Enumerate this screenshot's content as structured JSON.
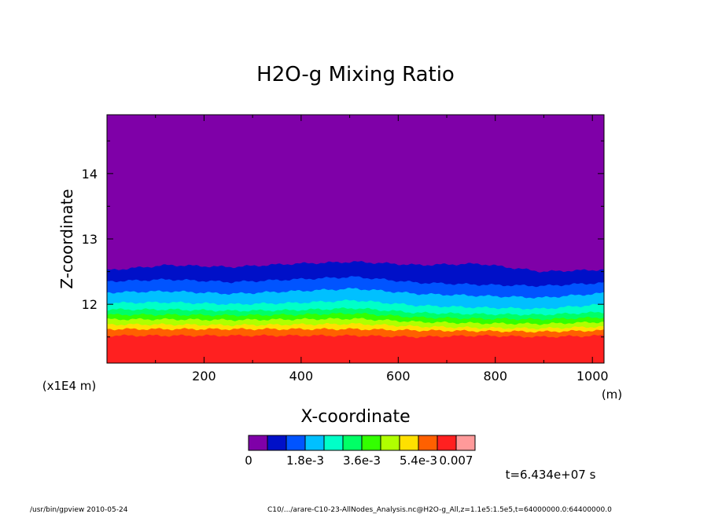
{
  "chart_data": {
    "type": "heatmap",
    "title": "H2O-g Mixing Ratio",
    "xlabel": "X-coordinate",
    "ylabel": "Z-coordinate",
    "x_unit": "(m)",
    "y_unit": "(x1E4 m)",
    "xlim": [
      0,
      1024
    ],
    "ylim": [
      11.1,
      14.9
    ],
    "x_ticks": [
      200,
      400,
      600,
      800,
      1000
    ],
    "x_tick_labels": [
      "200",
      "400",
      "600",
      "800",
      "1000"
    ],
    "y_ticks": [
      12,
      13,
      14
    ],
    "y_tick_labels": [
      "12",
      "13",
      "14"
    ],
    "colorbar": {
      "colors": [
        "#7f00a8",
        "#0010c8",
        "#0054ff",
        "#00c0ff",
        "#00ffc8",
        "#00ff66",
        "#33ff00",
        "#b0ff00",
        "#ffe000",
        "#ff6000",
        "#ff2020",
        "#ff9a9a"
      ],
      "tick_labels": [
        "0",
        "1.8e-3",
        "3.6e-3",
        "5.4e-3",
        "0.007"
      ],
      "tick_levels": [
        0,
        0.0018,
        0.0036,
        0.0054,
        0.007
      ],
      "levels": [
        0,
        0.0006,
        0.0012,
        0.0018,
        0.0024,
        0.003,
        0.0036,
        0.0042,
        0.0048,
        0.0054,
        0.006,
        0.007
      ]
    },
    "band_upper_z_at_x": {
      "x": [
        0,
        128,
        256,
        384,
        512,
        640,
        768,
        896,
        1024
      ],
      "level_1": [
        12.52,
        12.6,
        12.57,
        12.62,
        12.65,
        12.6,
        12.62,
        12.5,
        12.53
      ],
      "level_2": [
        12.35,
        12.38,
        12.34,
        12.38,
        12.42,
        12.33,
        12.3,
        12.28,
        12.33
      ],
      "level_3": [
        12.18,
        12.2,
        12.16,
        12.2,
        12.24,
        12.16,
        12.13,
        12.1,
        12.17
      ],
      "level_4": [
        12.02,
        12.03,
        12.0,
        12.02,
        12.06,
        11.98,
        11.95,
        11.93,
        12.0
      ],
      "level_5": [
        11.92,
        11.92,
        11.9,
        11.91,
        11.94,
        11.87,
        11.85,
        11.84,
        11.88
      ],
      "level_6": [
        11.84,
        11.84,
        11.83,
        11.84,
        11.86,
        11.8,
        11.78,
        11.77,
        11.8
      ],
      "level_7": [
        11.77,
        11.77,
        11.76,
        11.77,
        11.78,
        11.73,
        11.71,
        11.7,
        11.73
      ],
      "level_8": [
        11.69,
        11.69,
        11.68,
        11.69,
        11.7,
        11.66,
        11.64,
        11.63,
        11.66
      ],
      "level_9": [
        11.62,
        11.62,
        11.62,
        11.62,
        11.62,
        11.6,
        11.59,
        11.58,
        11.6
      ],
      "level_10": [
        11.52,
        11.52,
        11.52,
        11.52,
        11.52,
        11.5,
        11.52,
        11.5,
        11.52
      ]
    }
  },
  "annotations": {
    "time": "t=6.434e+07 s",
    "footer_left": "/usr/bin/gpview  2010-05-24",
    "footer_right": "C10/.../arare-C10-23-AllNodes_Analysis.nc@H2O-g_All,z=1.1e5:1.5e5,t=64000000.0:64400000.0"
  }
}
